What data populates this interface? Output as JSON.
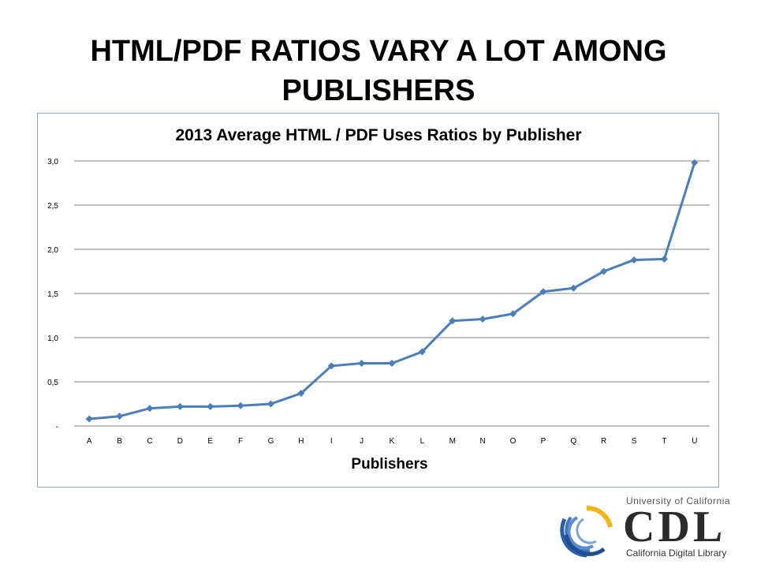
{
  "slide": {
    "title_line1": "HTML/PDF RATIOS VARY A LOT AMONG",
    "title_line2": "PUBLISHERS"
  },
  "chart_data": {
    "type": "line",
    "title": "2013 Average HTML / PDF Uses Ratios by Publisher",
    "xlabel": "Publishers",
    "ylabel": "",
    "categories": [
      "A",
      "B",
      "C",
      "D",
      "E",
      "F",
      "G",
      "H",
      "I",
      "J",
      "K",
      "L",
      "M",
      "N",
      "O",
      "P",
      "Q",
      "R",
      "S",
      "T",
      "U"
    ],
    "series": [
      {
        "values": [
          0.08,
          0.11,
          0.2,
          0.22,
          0.22,
          0.23,
          0.25,
          0.37,
          0.68,
          0.71,
          0.71,
          0.84,
          1.19,
          1.21,
          1.27,
          1.52,
          1.56,
          1.75,
          1.88,
          1.89,
          2.98
        ],
        "color": "#4a7ebb"
      }
    ],
    "ylim": [
      0,
      3.0
    ],
    "yticks": [
      0,
      0.5,
      1.0,
      1.5,
      2.0,
      2.5,
      3.0
    ],
    "ytick_labels": [
      "-",
      "0,5",
      "1,0",
      "1,5",
      "2,0",
      "2,5",
      "3,0"
    ],
    "grid": true,
    "marker": "diamond"
  },
  "logo": {
    "line1": "University of California",
    "main": "CDL",
    "line2": "California Digital Library"
  },
  "colors": {
    "series": "#4a7ebb",
    "gridline": "#868686",
    "frame_border": "#8ea3c4"
  }
}
